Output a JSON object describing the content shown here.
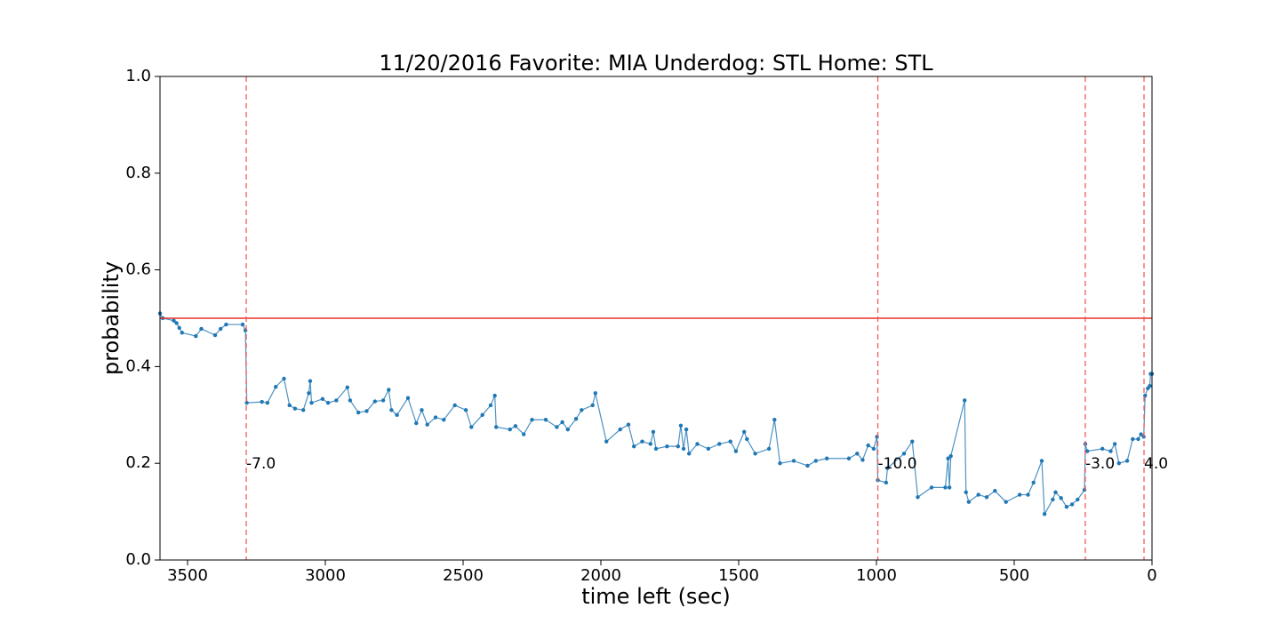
{
  "chart_data": {
    "type": "line",
    "title": "11/20/2016 Favorite: MIA Underdog: STL Home: STL",
    "x_label": "time left (sec)",
    "y_label": "probability",
    "xlim": [
      3600,
      0
    ],
    "ylim": [
      0,
      1
    ],
    "xticks": [
      3500,
      3000,
      2500,
      2000,
      1500,
      1000,
      500,
      0
    ],
    "yticks": [
      {
        "value": 0,
        "label": "0.0"
      },
      {
        "value": 0.2,
        "label": "0.2"
      },
      {
        "value": 0.4,
        "label": "0.4"
      },
      {
        "value": 0.6,
        "label": "0.6"
      },
      {
        "value": 0.8,
        "label": "0.8"
      },
      {
        "value": 1,
        "label": "1.0"
      }
    ],
    "hline": {
      "value": 0.5,
      "color": "#e8332a"
    },
    "vlines": {
      "color": "#f25b5b",
      "y": 0.21,
      "lines": [
        {
          "x": 3287,
          "label": "-7.0"
        },
        {
          "x": 995,
          "label": "-10.0"
        },
        {
          "x": 242,
          "label": "-3.0"
        },
        {
          "x": 29,
          "label": "4.0"
        }
      ]
    },
    "series": [
      {
        "color": "#1f77b4",
        "x": [
          3600,
          3590,
          3550,
          3540,
          3530,
          3520,
          3470,
          3450,
          3400,
          3380,
          3360,
          3300,
          3290,
          3285,
          3230,
          3210,
          3180,
          3150,
          3130,
          3110,
          3080,
          3060,
          3055,
          3050,
          3010,
          2990,
          2960,
          2920,
          2910,
          2880,
          2850,
          2820,
          2790,
          2770,
          2760,
          2740,
          2700,
          2670,
          2650,
          2630,
          2600,
          2570,
          2530,
          2490,
          2470,
          2430,
          2400,
          2385,
          2380,
          2330,
          2310,
          2280,
          2250,
          2200,
          2160,
          2140,
          2120,
          2090,
          2070,
          2030,
          2020,
          1980,
          1930,
          1900,
          1880,
          1850,
          1820,
          1810,
          1800,
          1760,
          1720,
          1710,
          1700,
          1690,
          1680,
          1650,
          1610,
          1570,
          1530,
          1510,
          1480,
          1470,
          1440,
          1390,
          1370,
          1350,
          1300,
          1250,
          1220,
          1180,
          1100,
          1070,
          1050,
          1030,
          1010,
          998,
          995,
          965,
          960,
          900,
          870,
          850,
          800,
          750,
          740,
          735,
          730,
          680,
          675,
          665,
          630,
          600,
          570,
          530,
          480,
          450,
          430,
          400,
          390,
          360,
          350,
          330,
          310,
          290,
          270,
          245,
          242,
          235,
          180,
          150,
          135,
          120,
          90,
          70,
          50,
          40,
          30,
          25,
          15,
          8,
          5,
          0
        ],
        "values": [
          0.51,
          0.5,
          0.495,
          0.49,
          0.48,
          0.47,
          0.463,
          0.478,
          0.465,
          0.478,
          0.487,
          0.487,
          0.475,
          0.325,
          0.327,
          0.325,
          0.358,
          0.375,
          0.32,
          0.313,
          0.31,
          0.345,
          0.37,
          0.325,
          0.333,
          0.325,
          0.33,
          0.357,
          0.33,
          0.305,
          0.308,
          0.328,
          0.33,
          0.352,
          0.31,
          0.3,
          0.335,
          0.283,
          0.31,
          0.28,
          0.295,
          0.29,
          0.32,
          0.31,
          0.275,
          0.3,
          0.32,
          0.34,
          0.275,
          0.27,
          0.277,
          0.26,
          0.29,
          0.29,
          0.275,
          0.285,
          0.27,
          0.292,
          0.31,
          0.32,
          0.345,
          0.245,
          0.27,
          0.28,
          0.235,
          0.245,
          0.24,
          0.265,
          0.23,
          0.235,
          0.235,
          0.278,
          0.23,
          0.27,
          0.22,
          0.24,
          0.23,
          0.24,
          0.245,
          0.225,
          0.265,
          0.25,
          0.22,
          0.23,
          0.29,
          0.2,
          0.205,
          0.195,
          0.205,
          0.21,
          0.21,
          0.22,
          0.207,
          0.237,
          0.23,
          0.255,
          0.165,
          0.16,
          0.19,
          0.22,
          0.245,
          0.13,
          0.15,
          0.15,
          0.21,
          0.15,
          0.215,
          0.33,
          0.14,
          0.12,
          0.135,
          0.13,
          0.143,
          0.12,
          0.135,
          0.135,
          0.16,
          0.205,
          0.095,
          0.125,
          0.14,
          0.128,
          0.11,
          0.115,
          0.125,
          0.145,
          0.24,
          0.225,
          0.23,
          0.225,
          0.24,
          0.2,
          0.205,
          0.25,
          0.25,
          0.26,
          0.255,
          0.34,
          0.355,
          0.36,
          0.385,
          0.385
        ]
      }
    ]
  }
}
